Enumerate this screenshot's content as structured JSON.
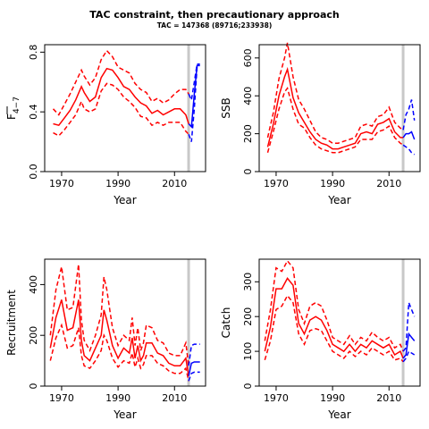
{
  "title": "TAC constraint, then precautionary approach",
  "subtitle": "TAC = 147368 (89716;233938)",
  "colors": {
    "historic": "#ff0000",
    "projection": "#0000ff",
    "divider": "#c8c8c8"
  },
  "chart_data": [
    {
      "type": "line",
      "panel": "top-left",
      "ylabel": "F̅4−7",
      "ylabel_main": "F",
      "ylabel_sub": "4−7",
      "xlabel": "Year",
      "xlim": [
        1964,
        2021
      ],
      "ylim": [
        0,
        0.85
      ],
      "xticks": [
        1970,
        1990,
        2010
      ],
      "yticks": [
        0.0,
        0.4,
        0.8
      ],
      "ytick_labels": [
        "0.0",
        "0.4",
        "0.8"
      ],
      "divider_x": 2015,
      "series": [
        {
          "role": "estimate",
          "x": [
            1967,
            1969,
            1971,
            1973,
            1975,
            1977,
            1978,
            1980,
            1982,
            1984,
            1986,
            1988,
            1990,
            1992,
            1994,
            1996,
            1998,
            2000,
            2002,
            2004,
            2006,
            2008,
            2010,
            2012,
            2014,
            2015
          ],
          "values": [
            0.32,
            0.31,
            0.36,
            0.41,
            0.48,
            0.57,
            0.53,
            0.47,
            0.5,
            0.63,
            0.69,
            0.68,
            0.63,
            0.57,
            0.55,
            0.5,
            0.46,
            0.44,
            0.39,
            0.41,
            0.38,
            0.4,
            0.42,
            0.42,
            0.38,
            0.32
          ]
        },
        {
          "role": "upper",
          "x": [
            1967,
            1969,
            1971,
            1973,
            1975,
            1977,
            1978,
            1980,
            1982,
            1984,
            1986,
            1988,
            1990,
            1992,
            1994,
            1996,
            1998,
            2000,
            2002,
            2004,
            2006,
            2008,
            2010,
            2012,
            2014,
            2015
          ],
          "values": [
            0.42,
            0.38,
            0.45,
            0.52,
            0.6,
            0.68,
            0.64,
            0.58,
            0.63,
            0.75,
            0.81,
            0.77,
            0.7,
            0.68,
            0.66,
            0.59,
            0.55,
            0.53,
            0.47,
            0.49,
            0.46,
            0.48,
            0.52,
            0.55,
            0.55,
            0.52
          ]
        },
        {
          "role": "lower",
          "x": [
            1967,
            1969,
            1971,
            1973,
            1975,
            1977,
            1978,
            1980,
            1982,
            1984,
            1986,
            1988,
            1990,
            1992,
            1994,
            1996,
            1998,
            2000,
            2002,
            2004,
            2006,
            2008,
            2010,
            2012,
            2014,
            2015
          ],
          "values": [
            0.26,
            0.24,
            0.28,
            0.33,
            0.38,
            0.47,
            0.42,
            0.4,
            0.42,
            0.54,
            0.59,
            0.58,
            0.55,
            0.5,
            0.47,
            0.43,
            0.37,
            0.36,
            0.31,
            0.33,
            0.31,
            0.33,
            0.33,
            0.33,
            0.27,
            0.25
          ]
        },
        {
          "role": "proj-estimate",
          "x": [
            2015,
            2016,
            2017,
            2018,
            2019
          ],
          "values": [
            0.32,
            0.3,
            0.52,
            0.71,
            0.71
          ]
        },
        {
          "role": "proj-upper",
          "x": [
            2015,
            2016,
            2017,
            2018,
            2019
          ],
          "values": [
            0.52,
            0.48,
            0.6,
            0.72,
            0.72
          ]
        },
        {
          "role": "proj-lower",
          "x": [
            2015,
            2016,
            2017,
            2018,
            2019
          ],
          "values": [
            0.25,
            0.2,
            0.42,
            0.7,
            0.7
          ]
        }
      ]
    },
    {
      "type": "line",
      "panel": "top-right",
      "ylabel": "SSB",
      "xlabel": "Year",
      "xlim": [
        1964,
        2021
      ],
      "ylim": [
        0,
        670
      ],
      "xticks": [
        1970,
        1990,
        2010
      ],
      "yticks": [
        0,
        200,
        400,
        600
      ],
      "ytick_labels": [
        "0",
        "200",
        "400",
        "600"
      ],
      "divider_x": 2015,
      "series": [
        {
          "role": "estimate",
          "x": [
            1967,
            1969,
            1971,
            1973,
            1974,
            1976,
            1978,
            1980,
            1982,
            1984,
            1986,
            1988,
            1990,
            1992,
            1994,
            1996,
            1998,
            2000,
            2002,
            2004,
            2006,
            2008,
            2010,
            2012,
            2014,
            2015
          ],
          "values": [
            130,
            250,
            400,
            500,
            540,
            390,
            310,
            260,
            210,
            170,
            150,
            140,
            120,
            120,
            130,
            140,
            150,
            200,
            210,
            200,
            250,
            260,
            280,
            210,
            180,
            180
          ]
        },
        {
          "role": "upper",
          "x": [
            1967,
            1969,
            1971,
            1973,
            1974,
            1976,
            1978,
            1980,
            1982,
            1984,
            1986,
            1988,
            1990,
            1992,
            1994,
            1996,
            1998,
            2000,
            2002,
            2004,
            2006,
            2008,
            2010,
            2012,
            2014,
            2015
          ],
          "values": [
            180,
            310,
            490,
            600,
            680,
            500,
            380,
            330,
            270,
            210,
            180,
            170,
            150,
            150,
            160,
            170,
            180,
            240,
            250,
            240,
            290,
            300,
            340,
            260,
            230,
            220
          ]
        },
        {
          "role": "lower",
          "x": [
            1967,
            1969,
            1971,
            1973,
            1974,
            1976,
            1978,
            1980,
            1982,
            1984,
            1986,
            1988,
            1990,
            1992,
            1994,
            1996,
            1998,
            2000,
            2002,
            2004,
            2006,
            2008,
            2010,
            2012,
            2014,
            2015
          ],
          "values": [
            100,
            210,
            330,
            420,
            440,
            330,
            250,
            230,
            180,
            140,
            120,
            110,
            100,
            100,
            110,
            120,
            130,
            170,
            170,
            170,
            210,
            220,
            240,
            180,
            150,
            140
          ]
        },
        {
          "role": "proj-estimate",
          "x": [
            2015,
            2016,
            2017,
            2018,
            2019
          ],
          "values": [
            180,
            200,
            200,
            210,
            170
          ]
        },
        {
          "role": "proj-upper",
          "x": [
            2015,
            2016,
            2017,
            2018,
            2019
          ],
          "values": [
            220,
            300,
            330,
            380,
            270
          ]
        },
        {
          "role": "proj-lower",
          "x": [
            2015,
            2016,
            2017,
            2018,
            2019
          ],
          "values": [
            140,
            130,
            120,
            100,
            90
          ]
        }
      ]
    },
    {
      "type": "line",
      "panel": "bottom-left",
      "ylabel": "Recruitment",
      "xlabel": "Year",
      "xlim": [
        1964,
        2021
      ],
      "ylim": [
        0,
        500
      ],
      "xticks": [
        1970,
        1990,
        2010
      ],
      "yticks": [
        0,
        200,
        400
      ],
      "ytick_labels": [
        "0",
        "200",
        "400"
      ],
      "divider_x": 2015,
      "series": [
        {
          "role": "estimate",
          "x": [
            1966,
            1968,
            1970,
            1972,
            1974,
            1976,
            1977,
            1978,
            1980,
            1982,
            1984,
            1985,
            1986,
            1988,
            1990,
            1992,
            1994,
            1995,
            1996,
            1997,
            1998,
            1999,
            2000,
            2002,
            2004,
            2006,
            2008,
            2010,
            2012,
            2014,
            2015
          ],
          "values": [
            150,
            270,
            340,
            220,
            230,
            340,
            180,
            120,
            100,
            150,
            200,
            300,
            260,
            160,
            110,
            150,
            130,
            190,
            110,
            160,
            100,
            120,
            170,
            170,
            130,
            120,
            90,
            80,
            80,
            110,
            40
          ]
        },
        {
          "role": "upper",
          "x": [
            1966,
            1968,
            1970,
            1972,
            1974,
            1976,
            1977,
            1978,
            1980,
            1982,
            1984,
            1985,
            1986,
            1988,
            1990,
            1992,
            1994,
            1995,
            1996,
            1997,
            1998,
            1999,
            2000,
            2002,
            2004,
            2006,
            2008,
            2010,
            2012,
            2014,
            2015
          ],
          "values": [
            200,
            380,
            470,
            300,
            310,
            480,
            260,
            180,
            140,
            200,
            280,
            430,
            380,
            230,
            160,
            200,
            180,
            270,
            160,
            230,
            140,
            170,
            240,
            230,
            180,
            170,
            130,
            120,
            120,
            170,
            80
          ]
        },
        {
          "role": "lower",
          "x": [
            1966,
            1968,
            1970,
            1972,
            1974,
            1976,
            1977,
            1978,
            1980,
            1982,
            1984,
            1985,
            1986,
            1988,
            1990,
            1992,
            1994,
            1995,
            1996,
            1997,
            1998,
            1999,
            2000,
            2002,
            2004,
            2006,
            2008,
            2010,
            2012,
            2014,
            2015
          ],
          "values": [
            100,
            190,
            240,
            150,
            160,
            230,
            120,
            80,
            70,
            100,
            140,
            200,
            180,
            110,
            75,
            100,
            90,
            130,
            75,
            110,
            70,
            85,
            120,
            120,
            90,
            80,
            60,
            50,
            50,
            70,
            20
          ]
        },
        {
          "role": "proj-estimate",
          "x": [
            2015,
            2016,
            2017,
            2018,
            2019
          ],
          "values": [
            40,
            90,
            95,
            95,
            95
          ]
        },
        {
          "role": "proj-upper",
          "x": [
            2015,
            2016,
            2017,
            2018,
            2019
          ],
          "values": [
            80,
            160,
            165,
            165,
            165
          ]
        },
        {
          "role": "proj-lower",
          "x": [
            2015,
            2016,
            2017,
            2018,
            2019
          ],
          "values": [
            20,
            50,
            55,
            55,
            55
          ]
        }
      ]
    },
    {
      "type": "line",
      "panel": "bottom-right",
      "ylabel": "Catch",
      "xlabel": "Year",
      "xlim": [
        1964,
        2021
      ],
      "ylim": [
        0,
        365
      ],
      "xticks": [
        1970,
        1990,
        2010
      ],
      "yticks": [
        0,
        100,
        200,
        300
      ],
      "ytick_labels": [
        "0",
        "100",
        "200",
        "300"
      ],
      "divider_x": 2015,
      "series": [
        {
          "role": "estimate",
          "x": [
            1966,
            1968,
            1970,
            1972,
            1974,
            1976,
            1978,
            1980,
            1982,
            1984,
            1986,
            1988,
            1990,
            1992,
            1994,
            1996,
            1998,
            2000,
            2002,
            2004,
            2006,
            2008,
            2010,
            2012,
            2014,
            2015
          ],
          "values": [
            100,
            170,
            280,
            280,
            310,
            290,
            180,
            150,
            190,
            200,
            190,
            160,
            120,
            110,
            100,
            120,
            100,
            120,
            110,
            130,
            120,
            110,
            120,
            90,
            100,
            80
          ]
        },
        {
          "role": "upper",
          "x": [
            1966,
            1968,
            1970,
            1972,
            1974,
            1976,
            1978,
            1980,
            1982,
            1984,
            1986,
            1988,
            1990,
            1992,
            1994,
            1996,
            1998,
            2000,
            2002,
            2004,
            2006,
            2008,
            2010,
            2012,
            2014,
            2015
          ],
          "values": [
            130,
            220,
            340,
            330,
            360,
            340,
            220,
            180,
            230,
            240,
            230,
            190,
            140,
            130,
            120,
            145,
            120,
            140,
            130,
            155,
            140,
            130,
            140,
            110,
            120,
            100
          ]
        },
        {
          "role": "lower",
          "x": [
            1966,
            1968,
            1970,
            1972,
            1974,
            1976,
            1978,
            1980,
            1982,
            1984,
            1986,
            1988,
            1990,
            1992,
            1994,
            1996,
            1998,
            2000,
            2002,
            2004,
            2006,
            2008,
            2010,
            2012,
            2014,
            2015
          ],
          "values": [
            75,
            130,
            220,
            230,
            260,
            240,
            150,
            120,
            160,
            165,
            160,
            130,
            100,
            90,
            80,
            100,
            85,
            100,
            90,
            110,
            100,
            90,
            100,
            75,
            80,
            70
          ]
        },
        {
          "role": "proj-estimate",
          "x": [
            2015,
            2016,
            2017,
            2018,
            2019
          ],
          "values": [
            80,
            90,
            150,
            140,
            130
          ]
        },
        {
          "role": "proj-upper",
          "x": [
            2015,
            2016,
            2017,
            2018,
            2019
          ],
          "values": [
            100,
            110,
            240,
            220,
            200
          ]
        },
        {
          "role": "proj-lower",
          "x": [
            2015,
            2016,
            2017,
            2018,
            2019
          ],
          "values": [
            70,
            80,
            100,
            95,
            90
          ]
        }
      ]
    }
  ]
}
